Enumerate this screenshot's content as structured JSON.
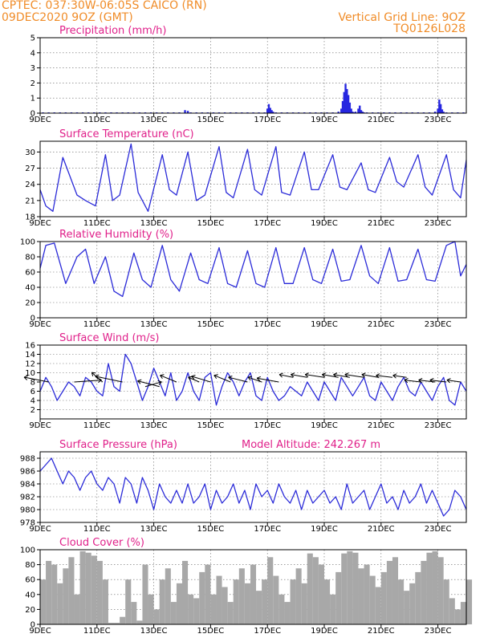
{
  "header": {
    "left_line1": "CPTEC:    037:30W-06:05S    CAICO (RN)",
    "left_line2": "09DEC2020 9OZ (GMT)",
    "right_line1": "Vertical Grid Line: 9OZ",
    "right_line2": "TQ0126L028"
  },
  "x_axis": {
    "tick_labels": [
      "9DEC",
      "11DEC",
      "13DEC",
      "15DEC",
      "17DEC",
      "19DEC",
      "21DEC",
      "23DEC"
    ],
    "tick_days": [
      0,
      2,
      4,
      6,
      8,
      10,
      12,
      14
    ],
    "range_days": [
      0,
      15
    ]
  },
  "colors": {
    "line": "#2a2ad8",
    "bar": "#2626e0",
    "cloud": "#a8a8a8",
    "title": "#e0208a",
    "header": "#f08c28"
  },
  "chart_data": [
    {
      "id": "precipitation",
      "type": "bar",
      "title": "Precipitation (mm/h)",
      "ylim": [
        0,
        5
      ],
      "yticks": [
        0,
        1,
        2,
        3,
        4,
        5
      ],
      "grid": true,
      "x": [
        0.1,
        0.3,
        0.5,
        0.7,
        0.9,
        1.1,
        1.3,
        1.5,
        1.7,
        1.9,
        2.1,
        2.3,
        2.5,
        2.7,
        2.9,
        3.1,
        3.3,
        3.5,
        3.7,
        3.9,
        4.1,
        4.3,
        4.5,
        4.7,
        4.9,
        5.1,
        5.2,
        5.3,
        5.5,
        5.7,
        5.9,
        6.1,
        6.3,
        6.5,
        6.7,
        6.9,
        7.1,
        7.3,
        7.5,
        7.7,
        7.9,
        8.0,
        8.05,
        8.1,
        8.15,
        8.2,
        8.3,
        8.5,
        8.7,
        8.9,
        9.1,
        9.3,
        9.5,
        9.7,
        9.9,
        10.1,
        10.3,
        10.5,
        10.6,
        10.65,
        10.7,
        10.75,
        10.8,
        10.85,
        10.9,
        10.95,
        11.0,
        11.05,
        11.1,
        11.2,
        11.25,
        11.3,
        11.35,
        11.4,
        11.5,
        11.7,
        11.9,
        12.1,
        12.3,
        12.5,
        12.7,
        12.9,
        13.1,
        13.3,
        13.5,
        13.7,
        13.9,
        14.0,
        14.05,
        14.1,
        14.15,
        14.2,
        14.3,
        14.5,
        14.7,
        14.9
      ],
      "values": [
        0.05,
        0.05,
        0.05,
        0.05,
        0.05,
        0.05,
        0.05,
        0.05,
        0.05,
        0.05,
        0.05,
        0.05,
        0.05,
        0.05,
        0.05,
        0.05,
        0.05,
        0.05,
        0.05,
        0.05,
        0.05,
        0.05,
        0.05,
        0.05,
        0.05,
        0.2,
        0.15,
        0.05,
        0.05,
        0.05,
        0.05,
        0.05,
        0.05,
        0.05,
        0.05,
        0.05,
        0.05,
        0.05,
        0.05,
        0.05,
        0.05,
        0.3,
        0.6,
        0.35,
        0.2,
        0.1,
        0.05,
        0.05,
        0.05,
        0.05,
        0.05,
        0.05,
        0.05,
        0.05,
        0.05,
        0.05,
        0.05,
        0.1,
        0.3,
        0.8,
        1.4,
        1.95,
        1.6,
        1.2,
        0.7,
        0.3,
        0.1,
        0.05,
        0.1,
        0.3,
        0.5,
        0.2,
        0.1,
        0.05,
        0.05,
        0.05,
        0.05,
        0.05,
        0.05,
        0.05,
        0.05,
        0.05,
        0.05,
        0.05,
        0.05,
        0.05,
        0.1,
        0.3,
        0.9,
        0.6,
        0.25,
        0.1,
        0.05,
        0.05,
        0.05,
        0.05
      ]
    },
    {
      "id": "temperature",
      "type": "line",
      "title": "Surface Temperature (nC)",
      "ylim": [
        18,
        32
      ],
      "yticks": [
        18,
        21,
        24,
        27,
        30
      ],
      "grid": true,
      "x": [
        0,
        0.2,
        0.45,
        0.8,
        1.3,
        1.6,
        1.95,
        2.3,
        2.55,
        2.8,
        3.2,
        3.45,
        3.8,
        4.3,
        4.55,
        4.8,
        5.2,
        5.5,
        5.8,
        6.3,
        6.55,
        6.8,
        7.3,
        7.55,
        7.8,
        8.3,
        8.5,
        8.8,
        9.3,
        9.55,
        9.8,
        10.3,
        10.55,
        10.8,
        11.3,
        11.55,
        11.8,
        12.3,
        12.55,
        12.8,
        13.3,
        13.55,
        13.8,
        14.3,
        14.55,
        14.8,
        15.0
      ],
      "values": [
        23,
        20,
        19,
        29,
        22,
        21,
        20,
        29.5,
        21,
        22,
        31.5,
        22.5,
        19,
        29.5,
        23,
        22,
        30,
        21,
        22,
        31,
        22.5,
        21.5,
        30.5,
        23,
        22,
        31,
        22.5,
        22,
        30,
        23,
        23,
        29.5,
        23.5,
        23,
        28,
        23,
        22.5,
        29,
        24.5,
        23.5,
        29.5,
        23.5,
        22,
        29.5,
        23,
        21.5,
        28.5
      ]
    },
    {
      "id": "humidity",
      "type": "line",
      "title": "Relative Humidity (%)",
      "ylim": [
        0,
        100
      ],
      "yticks": [
        0,
        20,
        40,
        60,
        80,
        100
      ],
      "grid": true,
      "x": [
        0,
        0.2,
        0.5,
        0.9,
        1.3,
        1.6,
        1.9,
        2.3,
        2.6,
        2.9,
        3.3,
        3.6,
        3.9,
        4.3,
        4.6,
        4.9,
        5.3,
        5.6,
        5.9,
        6.3,
        6.6,
        6.9,
        7.3,
        7.6,
        7.9,
        8.3,
        8.6,
        8.9,
        9.3,
        9.6,
        9.9,
        10.3,
        10.6,
        10.9,
        11.3,
        11.6,
        11.9,
        12.3,
        12.6,
        12.9,
        13.3,
        13.6,
        13.9,
        14.3,
        14.6,
        14.8,
        15.0
      ],
      "values": [
        65,
        95,
        98,
        45,
        80,
        90,
        45,
        80,
        35,
        28,
        85,
        50,
        40,
        95,
        50,
        35,
        85,
        50,
        45,
        92,
        45,
        40,
        88,
        45,
        40,
        92,
        45,
        45,
        92,
        50,
        45,
        90,
        48,
        50,
        95,
        55,
        45,
        92,
        48,
        50,
        90,
        50,
        48,
        95,
        100,
        55,
        70
      ]
    },
    {
      "id": "wind",
      "type": "line",
      "title": "Surface Wind (m/s)",
      "ylim": [
        0,
        16
      ],
      "yticks": [
        2,
        4,
        6,
        8,
        10,
        12,
        14,
        16
      ],
      "grid": true,
      "x": [
        0,
        0.2,
        0.4,
        0.6,
        0.8,
        1.0,
        1.2,
        1.4,
        1.6,
        1.8,
        2.0,
        2.2,
        2.4,
        2.6,
        2.8,
        3.0,
        3.2,
        3.4,
        3.6,
        3.8,
        4.0,
        4.2,
        4.4,
        4.6,
        4.8,
        5.0,
        5.2,
        5.4,
        5.6,
        5.8,
        6.0,
        6.2,
        6.4,
        6.6,
        6.8,
        7.0,
        7.2,
        7.4,
        7.6,
        7.8,
        8.0,
        8.2,
        8.4,
        8.6,
        8.8,
        9.0,
        9.2,
        9.4,
        9.6,
        9.8,
        10.0,
        10.2,
        10.4,
        10.6,
        10.8,
        11.0,
        11.2,
        11.4,
        11.6,
        11.8,
        12.0,
        12.2,
        12.4,
        12.6,
        12.8,
        13.0,
        13.2,
        13.4,
        13.6,
        13.8,
        14.0,
        14.2,
        14.4,
        14.6,
        14.8,
        15.0
      ],
      "values": [
        6,
        9,
        7,
        4,
        6,
        8,
        7,
        5,
        9,
        8,
        6,
        5,
        12,
        7,
        6,
        14,
        12,
        8,
        4,
        7,
        11,
        8,
        5,
        10,
        4,
        6,
        10,
        6,
        4,
        9,
        10,
        3,
        7,
        10,
        8,
        5,
        8,
        10,
        5,
        4,
        9,
        6,
        4,
        5,
        7,
        6,
        5,
        8,
        6,
        4,
        8,
        6,
        4,
        9,
        7,
        5,
        7,
        9,
        5,
        4,
        8,
        6,
        4,
        7,
        9,
        6,
        5,
        8,
        6,
        4,
        7,
        9,
        4,
        3,
        8,
        6
      ]
    },
    {
      "id": "wind-vectors",
      "type": "vector",
      "title": "",
      "base_speed": [
        8,
        8,
        8,
        8,
        7,
        7,
        8,
        8,
        8,
        8,
        8,
        8,
        8,
        9,
        9,
        9,
        9,
        9,
        9,
        9,
        9,
        9,
        8,
        8,
        8,
        8
      ],
      "u": [
        -0.9,
        1.0,
        -0.4,
        -1.0,
        0.6,
        -0.8,
        -0.6,
        -0.4,
        -0.7,
        -0.6,
        -0.7,
        -0.5,
        -0.8,
        -0.5,
        -0.6,
        -0.7,
        -0.6,
        -0.6,
        -0.7,
        -0.6,
        -0.6,
        -0.5,
        -0.6,
        -0.6,
        -0.6,
        -0.5
      ],
      "v": [
        0.5,
        0.2,
        1.0,
        0.6,
        0.5,
        0.6,
        0.7,
        0.5,
        0.6,
        0.7,
        0.5,
        0.5,
        0.4,
        0.3,
        0.3,
        0.3,
        0.3,
        0.3,
        0.3,
        0.3,
        0.2,
        0.2,
        0.2,
        0.2,
        0.2,
        0.2
      ],
      "x": [
        0.3,
        1.2,
        2.2,
        2.9,
        3.7,
        4.2,
        4.8,
        5.6,
        6.0,
        6.7,
        7.3,
        7.8,
        8.4,
        8.9,
        9.4,
        10.0,
        10.5,
        10.9,
        11.4,
        11.9,
        12.4,
        12.9,
        13.4,
        13.9,
        14.3,
        14.8
      ]
    },
    {
      "id": "pressure",
      "type": "line",
      "title": "Surface Pressure (hPa)",
      "annotation": "Model Altitude: 242.267  m",
      "ylim": [
        978,
        989
      ],
      "yticks": [
        978,
        980,
        982,
        984,
        986,
        988
      ],
      "grid": true,
      "x": [
        0,
        0.2,
        0.4,
        0.6,
        0.8,
        1.0,
        1.2,
        1.4,
        1.6,
        1.8,
        2.0,
        2.2,
        2.4,
        2.6,
        2.8,
        3.0,
        3.2,
        3.4,
        3.6,
        3.8,
        4.0,
        4.2,
        4.4,
        4.6,
        4.8,
        5.0,
        5.2,
        5.4,
        5.6,
        5.8,
        6.0,
        6.2,
        6.4,
        6.6,
        6.8,
        7.0,
        7.2,
        7.4,
        7.6,
        7.8,
        8.0,
        8.2,
        8.4,
        8.6,
        8.8,
        9.0,
        9.2,
        9.4,
        9.6,
        9.8,
        10.0,
        10.2,
        10.4,
        10.6,
        10.8,
        11.0,
        11.2,
        11.4,
        11.6,
        11.8,
        12.0,
        12.2,
        12.4,
        12.6,
        12.8,
        13.0,
        13.2,
        13.4,
        13.6,
        13.8,
        14.0,
        14.2,
        14.4,
        14.6,
        14.8,
        15.0
      ],
      "values": [
        986,
        987,
        988,
        986,
        984,
        986,
        985,
        983,
        985,
        986,
        984,
        983,
        985,
        984,
        981,
        985,
        984,
        981,
        985,
        983,
        980,
        984,
        982,
        981,
        983,
        981,
        984,
        981,
        982,
        984,
        980,
        983,
        981,
        982,
        984,
        981,
        983,
        980,
        984,
        982,
        983,
        981,
        984,
        982,
        981,
        983,
        980,
        983,
        981,
        982,
        983,
        981,
        982,
        980,
        984,
        981,
        982,
        983,
        980,
        982,
        984,
        981,
        982,
        980,
        983,
        981,
        982,
        984,
        981,
        983,
        981,
        979,
        980,
        983,
        982,
        980
      ]
    },
    {
      "id": "cloud",
      "type": "area",
      "title": "Cloud Cover (%)",
      "ylim": [
        0,
        100
      ],
      "yticks": [
        0,
        20,
        40,
        60,
        80,
        100
      ],
      "grid": true,
      "x": [
        0,
        0.2,
        0.4,
        0.6,
        0.8,
        1.0,
        1.2,
        1.4,
        1.6,
        1.8,
        2.0,
        2.2,
        2.4,
        2.6,
        2.8,
        3.0,
        3.2,
        3.4,
        3.6,
        3.8,
        4.0,
        4.2,
        4.4,
        4.6,
        4.8,
        5.0,
        5.2,
        5.4,
        5.6,
        5.8,
        6.0,
        6.2,
        6.4,
        6.6,
        6.8,
        7.0,
        7.2,
        7.4,
        7.6,
        7.8,
        8.0,
        8.2,
        8.4,
        8.6,
        8.8,
        9.0,
        9.2,
        9.4,
        9.6,
        9.8,
        10.0,
        10.2,
        10.4,
        10.6,
        10.8,
        11.0,
        11.2,
        11.4,
        11.6,
        11.8,
        12.0,
        12.2,
        12.4,
        12.6,
        12.8,
        13.0,
        13.2,
        13.4,
        13.6,
        13.8,
        14.0,
        14.2,
        14.4,
        14.6,
        14.8,
        15.0
      ],
      "values": [
        60,
        85,
        80,
        55,
        75,
        90,
        40,
        98,
        96,
        92,
        85,
        60,
        2,
        2,
        10,
        60,
        30,
        5,
        80,
        40,
        20,
        60,
        75,
        30,
        55,
        85,
        40,
        35,
        70,
        80,
        40,
        65,
        50,
        30,
        60,
        75,
        55,
        80,
        45,
        60,
        90,
        65,
        40,
        30,
        60,
        75,
        55,
        95,
        90,
        80,
        60,
        40,
        70,
        95,
        98,
        96,
        75,
        80,
        65,
        50,
        70,
        85,
        90,
        60,
        45,
        55,
        70,
        85,
        96,
        98,
        90,
        60,
        35,
        20,
        30,
        60
      ]
    }
  ]
}
